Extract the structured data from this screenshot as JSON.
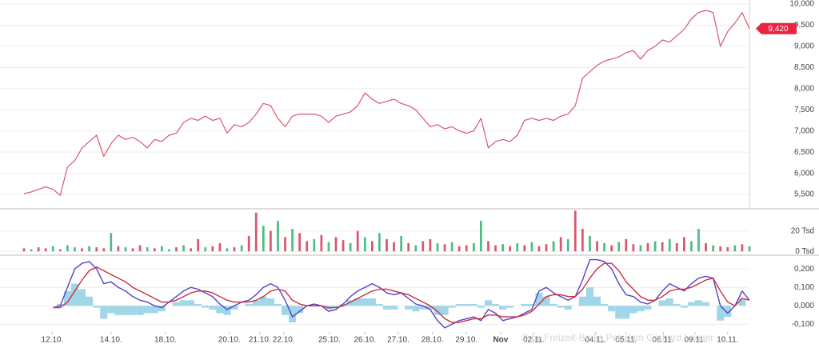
{
  "chart_data": [
    {
      "type": "line",
      "color": "#d9566c",
      "x": [
        0,
        1,
        2,
        3,
        4,
        5,
        6,
        7,
        8,
        9,
        10,
        11,
        12,
        13,
        14,
        15,
        16,
        17,
        18,
        19,
        20,
        21,
        22,
        23,
        24,
        25,
        26,
        27,
        28,
        29,
        30,
        31,
        32,
        33,
        34,
        35,
        36,
        37,
        38,
        39,
        40,
        41,
        42,
        43,
        44,
        45,
        46,
        47,
        48,
        49,
        50,
        51,
        52,
        53,
        54,
        55,
        56,
        57,
        58,
        59,
        60,
        61,
        62,
        63,
        64,
        65,
        66,
        67,
        68,
        69,
        70,
        71,
        72,
        73,
        74,
        75,
        76,
        77,
        78,
        79,
        80,
        81,
        82,
        83,
        84,
        85,
        86,
        87,
        88,
        89,
        90,
        91,
        92,
        93,
        94,
        95,
        96,
        97,
        98,
        99,
        100
      ],
      "values": [
        5520,
        5560,
        5620,
        5680,
        5620,
        5480,
        6150,
        6300,
        6600,
        6750,
        6900,
        6400,
        6700,
        6900,
        6800,
        6850,
        6750,
        6600,
        6800,
        6750,
        6900,
        6950,
        7200,
        7300,
        7250,
        7350,
        7250,
        7300,
        6950,
        7150,
        7100,
        7200,
        7400,
        7650,
        7600,
        7300,
        7100,
        7350,
        7400,
        7400,
        7400,
        7350,
        7200,
        7350,
        7400,
        7450,
        7600,
        7900,
        7750,
        7650,
        7700,
        7750,
        7650,
        7600,
        7500,
        7300,
        7100,
        7150,
        7050,
        7100,
        7000,
        6950,
        7000,
        7300,
        6600,
        6750,
        6800,
        6750,
        6900,
        7250,
        7300,
        7250,
        7300,
        7250,
        7350,
        7400,
        7600,
        8250,
        8400,
        8550,
        8650,
        8700,
        8750,
        8850,
        8900,
        8700,
        8900,
        9000,
        9150,
        9100,
        9250,
        9400,
        9650,
        9800,
        9850,
        9800,
        9000,
        9350,
        9550,
        9800,
        9420
      ],
      "xlim": [
        0,
        100
      ],
      "ylim": [
        5180,
        10095
      ],
      "yticks": [
        {
          "value": 5500,
          "label": "5,500"
        },
        {
          "value": 6000,
          "label": "6,000"
        },
        {
          "value": 6500,
          "label": "6,500"
        },
        {
          "value": 7000,
          "label": "7,000"
        },
        {
          "value": 7500,
          "label": "7,500"
        },
        {
          "value": 8000,
          "label": "8,000"
        },
        {
          "value": 8500,
          "label": "8,500"
        },
        {
          "value": 9000,
          "label": "9,000"
        },
        {
          "value": 9500,
          "label": "9,500"
        },
        {
          "value": 10000,
          "label": "10,000"
        }
      ],
      "grid": true,
      "last_price": {
        "value": 9420,
        "label": "9,420"
      }
    },
    {
      "type": "bar",
      "x": [
        0,
        1,
        2,
        3,
        4,
        5,
        6,
        7,
        8,
        9,
        10,
        11,
        12,
        13,
        14,
        15,
        16,
        17,
        18,
        19,
        20,
        21,
        22,
        23,
        24,
        25,
        26,
        27,
        28,
        29,
        30,
        31,
        32,
        33,
        34,
        35,
        36,
        37,
        38,
        39,
        40,
        41,
        42,
        43,
        44,
        45,
        46,
        47,
        48,
        49,
        50,
        51,
        52,
        53,
        54,
        55,
        56,
        57,
        58,
        59,
        60,
        61,
        62,
        63,
        64,
        65,
        66,
        67,
        68,
        69,
        70,
        71,
        72,
        73,
        74,
        75,
        76,
        77,
        78,
        79,
        80,
        81,
        82,
        83,
        84,
        85,
        86,
        87,
        88,
        89,
        90,
        91,
        92,
        93,
        94,
        95,
        96,
        97,
        98,
        99,
        100
      ],
      "values": [
        3,
        2,
        4,
        3,
        5,
        2,
        6,
        4,
        3,
        5,
        4,
        3,
        18,
        5,
        4,
        3,
        6,
        4,
        3,
        5,
        2,
        4,
        6,
        3,
        12,
        4,
        5,
        8,
        3,
        4,
        6,
        15,
        38,
        25,
        20,
        30,
        14,
        22,
        18,
        10,
        12,
        16,
        9,
        14,
        11,
        8,
        20,
        14,
        10,
        18,
        12,
        9,
        15,
        8,
        6,
        10,
        12,
        8,
        7,
        9,
        5,
        6,
        8,
        30,
        10,
        6,
        7,
        5,
        8,
        6,
        9,
        5,
        7,
        10,
        14,
        12,
        40,
        22,
        15,
        10,
        8,
        6,
        9,
        12,
        7,
        6,
        8,
        10,
        9,
        12,
        8,
        14,
        10,
        22,
        8,
        6,
        5,
        4,
        6,
        7,
        5
      ],
      "colors": [
        "#d9566c",
        "#4dbb85",
        "#d9566c",
        "#d9566c",
        "#4dbb85",
        "#d9566c",
        "#4dbb85",
        "#4dbb85",
        "#d9566c",
        "#4dbb85",
        "#d9566c",
        "#d9566c",
        "#4dbb85",
        "#d9566c",
        "#4dbb85",
        "#d9566c",
        "#d9566c",
        "#4dbb85",
        "#d9566c",
        "#4dbb85",
        "#4dbb85",
        "#d9566c",
        "#4dbb85",
        "#d9566c",
        "#d9566c",
        "#4dbb85",
        "#d9566c",
        "#d9566c",
        "#4dbb85",
        "#d9566c",
        "#4dbb85",
        "#d9566c",
        "#d9566c",
        "#4dbb85",
        "#d9566c",
        "#4dbb85",
        "#d9566c",
        "#4dbb85",
        "#d9566c",
        "#d9566c",
        "#4dbb85",
        "#d9566c",
        "#4dbb85",
        "#d9566c",
        "#d9566c",
        "#4dbb85",
        "#d9566c",
        "#4dbb85",
        "#d9566c",
        "#4dbb85",
        "#d9566c",
        "#d9566c",
        "#4dbb85",
        "#d9566c",
        "#4dbb85",
        "#d9566c",
        "#d9566c",
        "#4dbb85",
        "#d9566c",
        "#4dbb85",
        "#d9566c",
        "#d9566c",
        "#4dbb85",
        "#4dbb85",
        "#d9566c",
        "#d9566c",
        "#4dbb85",
        "#d9566c",
        "#4dbb85",
        "#d9566c",
        "#4dbb85",
        "#d9566c",
        "#d9566c",
        "#4dbb85",
        "#d9566c",
        "#4dbb85",
        "#d9566c",
        "#d9566c",
        "#4dbb85",
        "#d9566c",
        "#4dbb85",
        "#d9566c",
        "#4dbb85",
        "#d9566c",
        "#d9566c",
        "#4dbb85",
        "#d9566c",
        "#4dbb85",
        "#d9566c",
        "#4dbb85",
        "#d9566c",
        "#d9566c",
        "#4dbb85",
        "#4dbb85",
        "#d9566c",
        "#4dbb85",
        "#d9566c",
        "#d9566c",
        "#4dbb85",
        "#d9566c",
        "#4dbb85"
      ],
      "xlim": [
        0,
        100
      ],
      "ylim": [
        -3,
        41
      ],
      "yticks": [
        {
          "value": 0,
          "label": "0 Tsd"
        },
        {
          "value": 20,
          "label": "20 Tsd"
        }
      ],
      "grid": true
    },
    {
      "type": "line",
      "x": [
        0,
        1,
        2,
        3,
        4,
        5,
        6,
        7,
        8,
        9,
        10,
        11,
        12,
        13,
        14,
        15,
        16,
        17,
        18,
        19,
        20,
        21,
        22,
        23,
        24,
        25,
        26,
        27,
        28,
        29,
        30,
        31,
        32,
        33,
        34,
        35,
        36,
        37,
        38,
        39,
        40,
        41,
        42,
        43,
        44,
        45,
        46,
        47,
        48,
        49,
        50,
        51,
        52,
        53,
        54,
        55,
        56,
        57,
        58,
        59,
        60,
        61,
        62,
        63,
        64,
        65,
        66,
        67,
        68,
        69,
        70,
        71,
        72,
        73,
        74,
        75,
        76,
        77,
        78,
        79,
        80,
        81,
        82,
        83,
        84,
        85,
        86,
        87,
        88,
        89,
        90,
        91,
        92,
        93,
        94,
        95,
        96,
        97,
        98,
        99,
        100
      ],
      "histogram": {
        "color": "#9fd6e8",
        "values": [
          null,
          null,
          null,
          null,
          0,
          0.01,
          0.08,
          0.12,
          0.09,
          0.05,
          -0.01,
          -0.07,
          -0.04,
          -0.05,
          -0.05,
          -0.05,
          -0.05,
          -0.04,
          -0.04,
          -0.03,
          0,
          0.02,
          0.03,
          0.03,
          0.01,
          -0.01,
          -0.02,
          -0.04,
          -0.05,
          -0.02,
          0,
          0.01,
          0.03,
          0.05,
          0.04,
          0.01,
          -0.05,
          -0.09,
          -0.04,
          0,
          0.01,
          0,
          -0.02,
          -0.01,
          0.01,
          0.03,
          0.04,
          0.04,
          0.04,
          0.01,
          -0.02,
          -0.02,
          0,
          -0.02,
          -0.03,
          -0.02,
          -0.02,
          -0.05,
          -0.05,
          -0.01,
          0.01,
          0.01,
          0.01,
          -0.01,
          0.03,
          0.01,
          -0.02,
          -0.01,
          0,
          0.01,
          0.01,
          0.07,
          0.05,
          0.01,
          -0.01,
          -0.02,
          0,
          0.05,
          0.1,
          0.05,
          0.01,
          -0.03,
          -0.07,
          -0.07,
          -0.04,
          -0.03,
          -0.02,
          0,
          0.03,
          0.04,
          0.01,
          -0.01,
          0.02,
          0.03,
          0.02,
          0,
          -0.08,
          -0.06,
          0,
          0.04,
          0
        ]
      },
      "series": [
        {
          "color": "#5b3fc4",
          "values": [
            null,
            null,
            null,
            null,
            -0.01,
            0.0,
            0.1,
            0.2,
            0.23,
            0.24,
            0.2,
            0.12,
            0.13,
            0.1,
            0.08,
            0.05,
            0.03,
            0.02,
            0.0,
            -0.01,
            0.02,
            0.05,
            0.08,
            0.1,
            0.09,
            0.07,
            0.05,
            0.01,
            -0.02,
            0.0,
            0.02,
            0.03,
            0.06,
            0.1,
            0.12,
            0.1,
            0.03,
            -0.06,
            -0.03,
            0.0,
            0.01,
            0.0,
            -0.03,
            -0.02,
            0.01,
            0.05,
            0.08,
            0.1,
            0.12,
            0.1,
            0.07,
            0.06,
            0.07,
            0.04,
            0.01,
            0.0,
            -0.02,
            -0.08,
            -0.12,
            -0.1,
            -0.08,
            -0.07,
            -0.06,
            -0.08,
            -0.02,
            -0.04,
            -0.08,
            -0.07,
            -0.06,
            -0.04,
            -0.02,
            0.08,
            0.1,
            0.07,
            0.05,
            0.03,
            0.05,
            0.14,
            0.25,
            0.25,
            0.24,
            0.2,
            0.12,
            0.06,
            0.05,
            0.02,
            0.01,
            0.03,
            0.08,
            0.12,
            0.1,
            0.08,
            0.12,
            0.15,
            0.16,
            0.15,
            0.0,
            -0.04,
            0.0,
            0.08,
            0.03
          ]
        },
        {
          "color": "#c8303f",
          "values": [
            null,
            null,
            null,
            null,
            -0.01,
            -0.01,
            0.02,
            0.08,
            0.14,
            0.19,
            0.21,
            0.19,
            0.17,
            0.15,
            0.13,
            0.1,
            0.08,
            0.06,
            0.04,
            0.02,
            0.02,
            0.03,
            0.05,
            0.07,
            0.08,
            0.08,
            0.07,
            0.05,
            0.03,
            0.02,
            0.02,
            0.02,
            0.03,
            0.05,
            0.08,
            0.09,
            0.08,
            0.03,
            0.01,
            0.0,
            0.0,
            0.0,
            -0.01,
            -0.01,
            0.0,
            0.02,
            0.04,
            0.06,
            0.08,
            0.09,
            0.09,
            0.08,
            0.07,
            0.06,
            0.04,
            0.02,
            0.0,
            -0.03,
            -0.07,
            -0.09,
            -0.09,
            -0.08,
            -0.07,
            -0.07,
            -0.05,
            -0.05,
            -0.06,
            -0.06,
            -0.06,
            -0.05,
            -0.03,
            0.01,
            0.05,
            0.06,
            0.06,
            0.05,
            0.05,
            0.09,
            0.15,
            0.2,
            0.23,
            0.23,
            0.19,
            0.13,
            0.09,
            0.05,
            0.03,
            0.03,
            0.05,
            0.08,
            0.09,
            0.09,
            0.1,
            0.12,
            0.14,
            0.15,
            0.08,
            0.02,
            0.0,
            0.04,
            0.03
          ]
        }
      ],
      "xlim": [
        0,
        100
      ],
      "ylim": [
        -0.142,
        0.27
      ],
      "yticks": [
        {
          "value": -0.1,
          "label": "-0,100"
        },
        {
          "value": 0,
          "label": "0,000"
        },
        {
          "value": 0.1,
          "label": "0,100"
        },
        {
          "value": 0.2,
          "label": "0,200"
        }
      ],
      "grid": true,
      "xticks": [
        {
          "value": 3.9,
          "label": "12.10."
        },
        {
          "value": 12.0,
          "label": "14.10."
        },
        {
          "value": 19.5,
          "label": "18.10."
        },
        {
          "value": 28.3,
          "label": "20.10."
        },
        {
          "value": 32.5,
          "label": "21.10."
        },
        {
          "value": 35.8,
          "label": "22.10."
        },
        {
          "value": 42.1,
          "label": "25.10."
        },
        {
          "value": 47.0,
          "label": "26.10."
        },
        {
          "value": 51.6,
          "label": "27.10."
        },
        {
          "value": 56.3,
          "label": "28.10."
        },
        {
          "value": 61.0,
          "label": "29.10."
        },
        {
          "value": 65.7,
          "label": "Nov"
        },
        {
          "value": 70.3,
          "label": "02.11."
        },
        {
          "value": 78.8,
          "label": "04.11."
        },
        {
          "value": 83.0,
          "label": "05.11."
        },
        {
          "value": 88.1,
          "label": "08.11."
        },
        {
          "value": 92.5,
          "label": "09.11."
        },
        {
          "value": 97.0,
          "label": "10.11."
        }
      ]
    }
  ],
  "watermark": "© by Freizeit-Berlin Potsdam Gerhard Lauser"
}
